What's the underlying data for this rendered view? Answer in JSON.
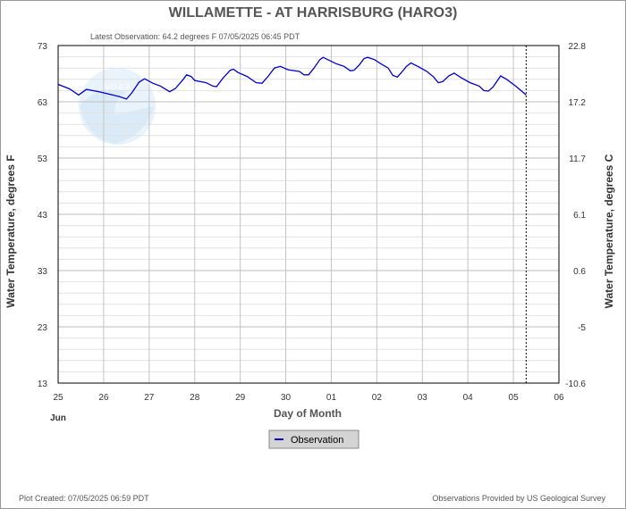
{
  "chart_data": {
    "type": "line",
    "title": "WILLAMETTE - AT HARRISBURG  (HARO3)",
    "subtitle": "Latest Observation: 64.2 degrees F 07/05/2025 06:45 PDT",
    "xlabel": "Day of Month",
    "ylabel": "Water Temperature, degrees F",
    "ylabel_right": "Water Temperature, degrees C",
    "month_label": "Jun",
    "x_ticks": [
      "25",
      "26",
      "27",
      "28",
      "29",
      "30",
      "01",
      "02",
      "03",
      "04",
      "05",
      "06"
    ],
    "x_range": [
      0,
      11
    ],
    "y_ticks": [
      73,
      63,
      53,
      43,
      33,
      23,
      13
    ],
    "y_tick_labels": [
      "73",
      "63",
      "53",
      "43",
      "33",
      "23",
      "13"
    ],
    "ylim": [
      13,
      73
    ],
    "y_right_ticks": [
      "22.8",
      "17.2",
      "11.7",
      "6.1",
      "0.6",
      "-5",
      "-10.6"
    ],
    "grid": true,
    "current_time_marker": 10.28,
    "legend": "bottom-center",
    "series": [
      {
        "name": "Observation",
        "color": "#0000cc",
        "points": [
          [
            0.0,
            66.1
          ],
          [
            0.25,
            65.3
          ],
          [
            0.45,
            64.2
          ],
          [
            0.62,
            65.2
          ],
          [
            0.9,
            64.8
          ],
          [
            1.2,
            64.2
          ],
          [
            1.35,
            63.9
          ],
          [
            1.5,
            63.5
          ],
          [
            1.62,
            64.6
          ],
          [
            1.78,
            66.5
          ],
          [
            1.9,
            67.1
          ],
          [
            2.08,
            66.3
          ],
          [
            2.25,
            65.8
          ],
          [
            2.45,
            64.8
          ],
          [
            2.58,
            65.4
          ],
          [
            2.75,
            67.0
          ],
          [
            2.82,
            67.8
          ],
          [
            2.92,
            67.5
          ],
          [
            3.0,
            66.8
          ],
          [
            3.25,
            66.4
          ],
          [
            3.4,
            65.8
          ],
          [
            3.48,
            65.7
          ],
          [
            3.62,
            67.2
          ],
          [
            3.78,
            68.6
          ],
          [
            3.85,
            68.8
          ],
          [
            3.95,
            68.2
          ],
          [
            4.15,
            67.5
          ],
          [
            4.35,
            66.4
          ],
          [
            4.48,
            66.3
          ],
          [
            4.62,
            67.6
          ],
          [
            4.75,
            69.0
          ],
          [
            4.88,
            69.3
          ],
          [
            5.05,
            68.7
          ],
          [
            5.3,
            68.4
          ],
          [
            5.4,
            67.8
          ],
          [
            5.5,
            67.8
          ],
          [
            5.62,
            69.0
          ],
          [
            5.75,
            70.5
          ],
          [
            5.82,
            70.9
          ],
          [
            5.95,
            70.4
          ],
          [
            6.1,
            69.8
          ],
          [
            6.28,
            69.3
          ],
          [
            6.42,
            68.5
          ],
          [
            6.5,
            68.6
          ],
          [
            6.62,
            69.6
          ],
          [
            6.72,
            70.7
          ],
          [
            6.8,
            70.9
          ],
          [
            6.95,
            70.5
          ],
          [
            7.1,
            69.7
          ],
          [
            7.25,
            69.0
          ],
          [
            7.35,
            67.7
          ],
          [
            7.45,
            67.4
          ],
          [
            7.55,
            68.3
          ],
          [
            7.65,
            69.3
          ],
          [
            7.75,
            69.9
          ],
          [
            7.9,
            69.3
          ],
          [
            8.1,
            68.4
          ],
          [
            8.25,
            67.4
          ],
          [
            8.35,
            66.4
          ],
          [
            8.45,
            66.6
          ],
          [
            8.58,
            67.6
          ],
          [
            8.7,
            68.1
          ],
          [
            8.85,
            67.3
          ],
          [
            9.05,
            66.4
          ],
          [
            9.25,
            65.8
          ],
          [
            9.35,
            65.0
          ],
          [
            9.45,
            64.9
          ],
          [
            9.55,
            65.6
          ],
          [
            9.65,
            66.8
          ],
          [
            9.72,
            67.6
          ],
          [
            9.85,
            67.0
          ],
          [
            10.05,
            65.8
          ],
          [
            10.18,
            64.9
          ],
          [
            10.28,
            64.2
          ]
        ]
      }
    ]
  },
  "legend": {
    "label": "Observation"
  },
  "footer": {
    "created": "Plot Created: 07/05/2025 06:59 PDT",
    "provider": "Observations Provided by US Geological Survey"
  },
  "watermark": {
    "text": "NOAA",
    "color": "#cfe6f7"
  }
}
